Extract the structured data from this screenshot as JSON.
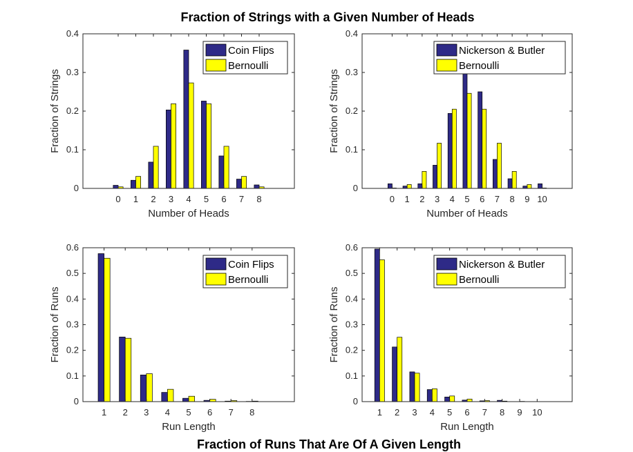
{
  "figure": {
    "top_title": "Fraction of Strings with a Given Number of Heads",
    "bottom_title": "Fraction of Runs That Are Of A Given Length"
  },
  "colors": {
    "series1": "#2e2a87",
    "series2": "#ffff00",
    "edge": "#000000",
    "axis": "#262626"
  },
  "chart_data": [
    {
      "type": "bar",
      "xlabel": "Number of Heads",
      "ylabel": "Fraction of Strings",
      "xlim": [
        -2,
        10
      ],
      "ylim": [
        0,
        0.4
      ],
      "categories": [
        "0",
        "1",
        "2",
        "3",
        "4",
        "5",
        "6",
        "7",
        "8"
      ],
      "yticks": [
        "0",
        "0.1",
        "0.2",
        "0.3",
        "0.4"
      ],
      "grid": false,
      "legend_position": "top-right",
      "series": [
        {
          "name": "Coin Flips",
          "values": [
            0.008,
            0.021,
            0.068,
            0.203,
            0.358,
            0.226,
            0.084,
            0.024,
            0.009
          ]
        },
        {
          "name": "Bernoulli",
          "values": [
            0.004,
            0.031,
            0.109,
            0.219,
            0.273,
            0.219,
            0.109,
            0.031,
            0.004
          ]
        }
      ]
    },
    {
      "type": "bar",
      "xlabel": "Number of Heads",
      "ylabel": "Fraction of Strings",
      "xlim": [
        -2,
        12
      ],
      "ylim": [
        0,
        0.4
      ],
      "categories": [
        "0",
        "1",
        "2",
        "3",
        "4",
        "5",
        "6",
        "7",
        "8",
        "9",
        "10"
      ],
      "yticks": [
        "0",
        "0.1",
        "0.2",
        "0.3",
        "0.4"
      ],
      "grid": false,
      "legend_position": "top-right",
      "series": [
        {
          "name": "Nickerson & Butler",
          "values": [
            0.012,
            0.006,
            0.012,
            0.06,
            0.194,
            0.3,
            0.25,
            0.075,
            0.025,
            0.006,
            0.012
          ]
        },
        {
          "name": "Bernoulli",
          "values": [
            0.001,
            0.01,
            0.044,
            0.117,
            0.205,
            0.246,
            0.205,
            0.117,
            0.044,
            0.01,
            0.001
          ]
        }
      ]
    },
    {
      "type": "bar",
      "xlabel": "Run Length",
      "ylabel": "Fraction of Runs",
      "xlim": [
        0,
        10
      ],
      "ylim": [
        0,
        0.6
      ],
      "categories": [
        "1",
        "2",
        "3",
        "4",
        "5",
        "6",
        "7",
        "8"
      ],
      "yticks": [
        "0",
        "0.1",
        "0.2",
        "0.3",
        "0.4",
        "0.5",
        "0.6"
      ],
      "grid": false,
      "legend_position": "top-right",
      "series": [
        {
          "name": "Coin Flips",
          "values": [
            0.577,
            0.252,
            0.104,
            0.036,
            0.013,
            0.005,
            0.002,
            0.001
          ]
        },
        {
          "name": "Bernoulli",
          "values": [
            0.559,
            0.247,
            0.109,
            0.048,
            0.021,
            0.009,
            0.004,
            0.002
          ]
        }
      ]
    },
    {
      "type": "bar",
      "xlabel": "Run Length",
      "ylabel": "Fraction of Runs",
      "xlim": [
        0,
        12
      ],
      "ylim": [
        0,
        0.6
      ],
      "categories": [
        "1",
        "2",
        "3",
        "4",
        "5",
        "6",
        "7",
        "8",
        "9",
        "10"
      ],
      "yticks": [
        "0",
        "0.1",
        "0.2",
        "0.3",
        "0.4",
        "0.5",
        "0.6"
      ],
      "grid": false,
      "legend_position": "top-right",
      "series": [
        {
          "name": "Nickerson & Butler",
          "values": [
            0.595,
            0.213,
            0.116,
            0.047,
            0.018,
            0.006,
            0.003,
            0.005,
            0.0,
            0.0
          ]
        },
        {
          "name": "Bernoulli",
          "values": [
            0.553,
            0.251,
            0.111,
            0.05,
            0.022,
            0.01,
            0.004,
            0.002,
            0.001,
            0.0
          ]
        }
      ]
    }
  ]
}
